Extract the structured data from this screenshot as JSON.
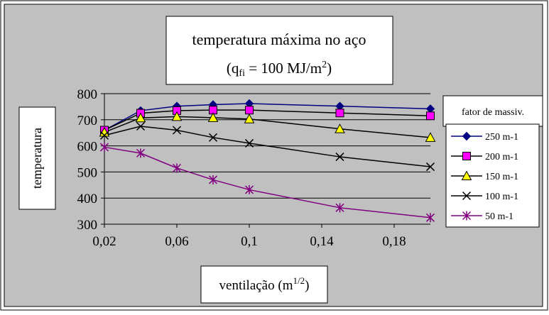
{
  "chart_data": {
    "type": "line",
    "title_line1": "temperatura máxima no aço",
    "title_line2": {
      "pre": "(q",
      "sub": "fi",
      "mid": " = 100 MJ/m",
      "sup": "2",
      "post": ")"
    },
    "ylabel": "temperatura",
    "xlabel": {
      "pre": "ventilação (m",
      "sup": "1/2",
      "post": ")"
    },
    "legend_title": "fator de massiv.",
    "x": [
      0.02,
      0.04,
      0.06,
      0.08,
      0.1,
      0.15,
      0.2
    ],
    "xlim": [
      0.02,
      0.2
    ],
    "ylim": [
      300,
      800
    ],
    "xticks": [
      0.02,
      0.06,
      0.1,
      0.14,
      0.18
    ],
    "xtick_labels": [
      "0,02",
      "0,06",
      "0,1",
      "0,14",
      "0,18"
    ],
    "yticks": [
      300,
      400,
      500,
      600,
      700,
      800
    ],
    "ytick_labels": [
      "300",
      "400",
      "500",
      "600",
      "700",
      "800"
    ],
    "grid": "horizontal",
    "legend_position": "right",
    "series": [
      {
        "name": "250 m-1",
        "color": "#000080",
        "marker": "diamond",
        "values": [
          660,
          735,
          752,
          758,
          762,
          752,
          742
        ]
      },
      {
        "name": "200 m-1",
        "color": "#000000",
        "markerFill": "#ff00ff",
        "marker": "square",
        "values": [
          660,
          725,
          735,
          737,
          737,
          726,
          715
        ]
      },
      {
        "name": "150 m-1",
        "color": "#000000",
        "markerFill": "#ffff00",
        "marker": "triangle",
        "values": [
          652,
          707,
          712,
          708,
          703,
          665,
          632
        ]
      },
      {
        "name": "100 m-1",
        "color": "#000000",
        "marker": "x",
        "values": [
          640,
          675,
          660,
          632,
          610,
          558,
          520
        ]
      },
      {
        "name": "50 m-1",
        "color": "#800080",
        "marker": "star",
        "values": [
          595,
          572,
          515,
          470,
          432,
          363,
          325
        ]
      }
    ]
  }
}
